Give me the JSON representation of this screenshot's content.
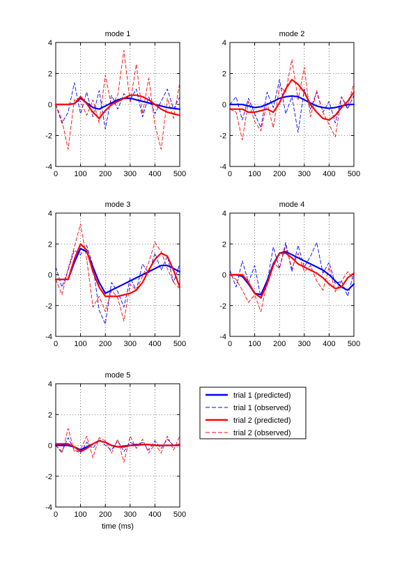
{
  "chart_data": {
    "type": "line",
    "x_units": "ms",
    "xlim": [
      0,
      500
    ],
    "ylim": [
      -4,
      4
    ],
    "xticks": [
      0,
      100,
      200,
      300,
      400,
      500
    ],
    "yticks": [
      -4,
      -2,
      0,
      2,
      4
    ],
    "grid": true,
    "legend": {
      "placement": "right of mode 5",
      "entries": [
        {
          "label": "trial 1 (predicted)",
          "color": "#0000ff",
          "style": "solid"
        },
        {
          "label": "trial 1 (observed)",
          "color": "#0000ff",
          "style": "dashed"
        },
        {
          "label": "trial 2 (predicted)",
          "color": "#ff0000",
          "style": "solid"
        },
        {
          "label": "trial 2 (observed)",
          "color": "#ff0000",
          "style": "dashed"
        }
      ]
    },
    "panels": [
      {
        "title": "mode 1",
        "xlabel": "",
        "x": [
          0,
          25,
          50,
          75,
          100,
          125,
          150,
          175,
          200,
          225,
          250,
          275,
          300,
          325,
          350,
          375,
          400,
          425,
          450,
          475,
          500
        ],
        "series": [
          {
            "name": "trial 1 (predicted)",
            "values": [
              0.0,
              0.0,
              0.0,
              0.05,
              0.4,
              0.1,
              -0.2,
              -0.3,
              -0.1,
              0.1,
              0.3,
              0.4,
              0.4,
              0.3,
              0.2,
              0.1,
              0.0,
              -0.1,
              -0.2,
              -0.25,
              -0.3
            ]
          },
          {
            "name": "trial 1 (observed)",
            "values": [
              0.0,
              -1.2,
              -0.5,
              1.4,
              -0.6,
              0.8,
              -0.8,
              0.9,
              -1.6,
              0.6,
              -0.3,
              0.7,
              0.3,
              1.0,
              -0.8,
              0.5,
              -0.6,
              0.2,
              1.0,
              -0.3,
              0.5
            ]
          },
          {
            "name": "trial 2 (predicted)",
            "values": [
              0.0,
              0.0,
              0.0,
              0.05,
              0.5,
              0.05,
              -0.5,
              -0.9,
              -0.4,
              0.0,
              0.2,
              0.4,
              0.6,
              0.6,
              0.5,
              0.3,
              0.0,
              -0.3,
              -0.5,
              -0.6,
              -0.7
            ]
          },
          {
            "name": "trial 2 (observed)",
            "values": [
              0.0,
              -1.0,
              -2.9,
              0.3,
              0.2,
              -0.7,
              0.3,
              -1.2,
              1.9,
              -0.1,
              0.6,
              3.5,
              0.1,
              2.6,
              -0.6,
              1.7,
              -1.3,
              -2.9,
              0.4,
              -0.9,
              1.4
            ]
          }
        ]
      },
      {
        "title": "mode 2",
        "xlabel": "",
        "x": [
          0,
          25,
          50,
          75,
          100,
          125,
          150,
          175,
          200,
          225,
          250,
          275,
          300,
          325,
          350,
          375,
          400,
          425,
          450,
          475,
          500
        ],
        "series": [
          {
            "name": "trial 1 (predicted)",
            "values": [
              0.0,
              0.0,
              0.0,
              -0.1,
              -0.2,
              -0.15,
              0.0,
              0.2,
              0.4,
              0.5,
              0.55,
              0.5,
              0.3,
              0.1,
              -0.1,
              -0.2,
              -0.25,
              -0.2,
              -0.1,
              0.0,
              0.0
            ]
          },
          {
            "name": "trial 1 (observed)",
            "values": [
              0.0,
              0.5,
              -1.0,
              0.4,
              -0.6,
              -1.5,
              0.8,
              -0.2,
              1.6,
              -0.6,
              0.5,
              -1.8,
              1.0,
              -0.3,
              0.8,
              -0.5,
              0.2,
              -1.2,
              0.5,
              -0.3,
              0.6
            ]
          },
          {
            "name": "trial 2 (predicted)",
            "values": [
              -0.3,
              -0.3,
              -0.3,
              -0.5,
              -0.5,
              -0.4,
              -0.3,
              -0.5,
              0.1,
              1.0,
              1.6,
              1.3,
              0.8,
              0.0,
              -0.5,
              -0.9,
              -1.0,
              -0.7,
              -0.2,
              0.2,
              0.8
            ]
          },
          {
            "name": "trial 2 (observed)",
            "values": [
              -0.3,
              -0.5,
              -2.3,
              0.2,
              -1.1,
              -1.7,
              0.1,
              -1.5,
              1.2,
              0.8,
              2.9,
              0.3,
              2.4,
              -0.8,
              0.9,
              -0.5,
              -1.3,
              -2.1,
              0.5,
              -0.2,
              1.4
            ]
          }
        ]
      },
      {
        "title": "mode 3",
        "xlabel": "",
        "x": [
          0,
          25,
          50,
          75,
          100,
          125,
          150,
          175,
          200,
          225,
          250,
          275,
          300,
          325,
          350,
          375,
          400,
          425,
          450,
          475,
          500
        ],
        "series": [
          {
            "name": "trial 1 (predicted)",
            "values": [
              -0.3,
              -0.3,
              -0.3,
              0.8,
              1.7,
              1.5,
              0.5,
              -0.5,
              -1.2,
              -1.0,
              -0.8,
              -0.6,
              -0.4,
              -0.2,
              0.0,
              0.2,
              0.4,
              0.6,
              0.6,
              0.4,
              0.2
            ]
          },
          {
            "name": "trial 1 (observed)",
            "values": [
              0.5,
              -0.8,
              0.3,
              1.6,
              1.3,
              1.9,
              0.6,
              -2.3,
              -3.2,
              -0.5,
              -1.1,
              -2.1,
              -0.2,
              -1.0,
              0.7,
              0.1,
              1.4,
              0.3,
              1.2,
              -0.5,
              0.7
            ]
          },
          {
            "name": "trial 2 (predicted)",
            "values": [
              -0.3,
              -0.3,
              -0.3,
              1.0,
              2.0,
              1.6,
              0.2,
              -0.8,
              -1.4,
              -1.4,
              -1.4,
              -1.3,
              -1.2,
              -1.0,
              -0.5,
              0.3,
              1.0,
              1.4,
              1.2,
              0.3,
              -0.8
            ]
          },
          {
            "name": "trial 2 (observed)",
            "values": [
              -0.3,
              -1.3,
              0.4,
              1.8,
              3.3,
              1.0,
              -2.1,
              -1.4,
              -2.4,
              -1.0,
              -1.5,
              -3.0,
              -0.6,
              -1.0,
              -0.1,
              0.8,
              2.1,
              1.5,
              0.4,
              -0.5,
              -0.9
            ]
          }
        ]
      },
      {
        "title": "mode 4",
        "xlabel": "",
        "x": [
          0,
          25,
          50,
          75,
          100,
          125,
          150,
          175,
          200,
          225,
          250,
          275,
          300,
          325,
          350,
          375,
          400,
          425,
          450,
          475,
          500
        ],
        "series": [
          {
            "name": "trial 1 (predicted)",
            "values": [
              0.0,
              0.0,
              -0.1,
              -0.6,
              -1.2,
              -1.3,
              -0.4,
              0.7,
              1.4,
              1.5,
              1.3,
              1.1,
              0.9,
              0.7,
              0.5,
              0.3,
              0.0,
              -0.4,
              -0.8,
              -1.0,
              -0.6
            ]
          },
          {
            "name": "trial 1 (observed)",
            "values": [
              0.3,
              -0.8,
              0.9,
              -0.5,
              0.6,
              -1.5,
              -0.5,
              1.8,
              0.4,
              2.1,
              0.2,
              1.9,
              0.5,
              1.2,
              2.1,
              0.1,
              0.8,
              -0.6,
              -0.4,
              -1.4,
              0.2
            ]
          },
          {
            "name": "trial 2 (predicted)",
            "values": [
              0.0,
              0.0,
              0.0,
              -0.5,
              -1.2,
              -1.5,
              -0.6,
              0.6,
              1.4,
              1.4,
              1.1,
              0.7,
              0.5,
              0.3,
              0.1,
              -0.2,
              -0.6,
              -0.9,
              -0.8,
              -0.2,
              0.1
            ]
          },
          {
            "name": "trial 2 (observed)",
            "values": [
              0.0,
              -0.3,
              -1.0,
              -1.8,
              -1.3,
              -2.4,
              -0.5,
              0.8,
              0.4,
              1.9,
              0.4,
              1.4,
              0.2,
              0.6,
              -0.4,
              -1.0,
              0.5,
              -1.1,
              -0.4,
              0.2,
              -0.3
            ]
          }
        ]
      },
      {
        "title": "mode 5",
        "xlabel": "time (ms)",
        "x": [
          0,
          25,
          50,
          75,
          100,
          125,
          150,
          175,
          200,
          225,
          250,
          275,
          300,
          325,
          350,
          375,
          400,
          425,
          450,
          475,
          500
        ],
        "series": [
          {
            "name": "trial 1 (predicted)",
            "values": [
              0.0,
              0.0,
              0.0,
              -0.1,
              -0.3,
              -0.1,
              0.1,
              0.3,
              0.2,
              0.0,
              -0.1,
              -0.05,
              0.0,
              0.05,
              0.05,
              0.05,
              0.0,
              0.0,
              0.0,
              0.0,
              0.0
            ]
          },
          {
            "name": "trial 1 (observed)",
            "values": [
              0.0,
              -0.4,
              0.5,
              -0.3,
              -0.5,
              0.2,
              -0.2,
              0.4,
              0.0,
              -0.3,
              0.3,
              -0.4,
              0.2,
              0.0,
              0.2,
              -0.3,
              0.3,
              -0.2,
              0.4,
              0.0,
              0.1
            ]
          },
          {
            "name": "trial 2 (predicted)",
            "values": [
              0.1,
              0.1,
              0.1,
              -0.1,
              -0.4,
              -0.2,
              0.1,
              0.3,
              0.2,
              0.0,
              -0.1,
              -0.1,
              0.0,
              0.0,
              0.05,
              0.05,
              0.0,
              0.0,
              0.0,
              0.0,
              0.0
            ]
          },
          {
            "name": "trial 2 (observed)",
            "values": [
              0.0,
              -0.5,
              1.1,
              -0.4,
              -0.3,
              0.6,
              -0.8,
              0.5,
              0.3,
              -0.5,
              0.4,
              -1.1,
              0.6,
              -0.2,
              0.4,
              -0.5,
              0.1,
              -0.5,
              0.6,
              -0.3,
              0.6
            ]
          }
        ]
      }
    ]
  }
}
